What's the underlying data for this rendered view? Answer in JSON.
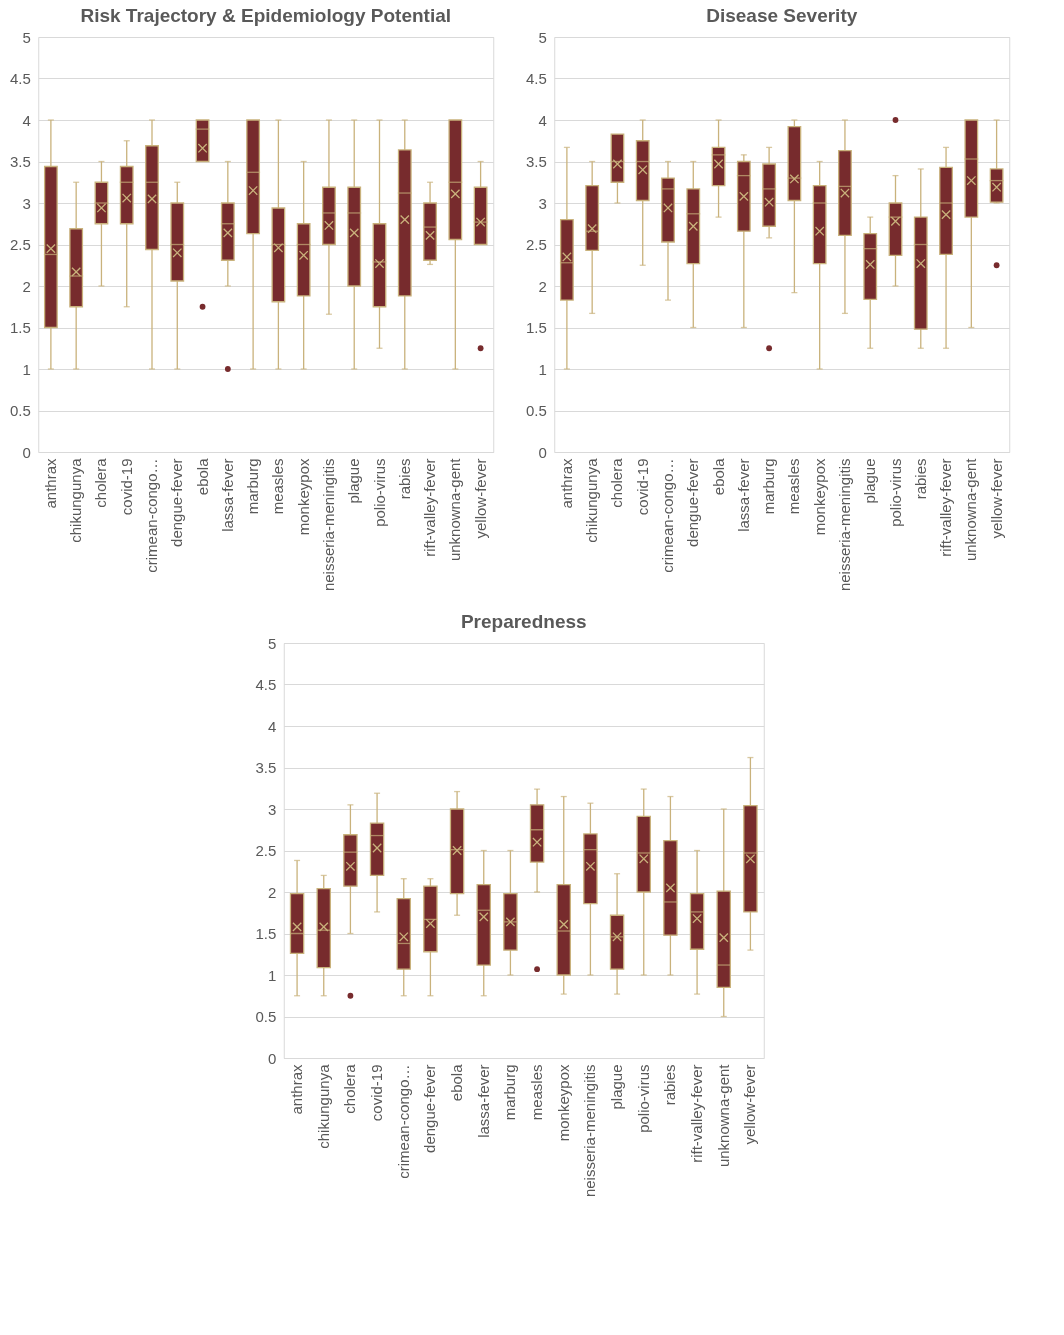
{
  "chart_data": [
    {
      "type": "box",
      "title": "Risk Trajectory & Epidemiology Potential",
      "categories": [
        "anthrax",
        "chikungunya",
        "cholera",
        "covid-19",
        "crimean-congo…",
        "dengue-fever",
        "ebola",
        "lassa-fever",
        "marburg",
        "measles",
        "monkeypox",
        "neisseria-meningitis",
        "plague",
        "polio-virus",
        "rabies",
        "rift-valley-fever",
        "unknowna-gent",
        "yellow-fever"
      ],
      "ylim": [
        0,
        5
      ],
      "yticks": [
        0,
        0.5,
        1,
        1.5,
        2,
        2.5,
        3,
        3.5,
        4,
        4.5,
        5
      ],
      "grid": "y",
      "series": [
        {
          "color": "#772b2d",
          "boxes": [
            {
              "low": 1,
              "q1": 1.5,
              "median": 2.38,
              "q3": 3.44,
              "high": 4,
              "mean": 2.45
            },
            {
              "low": 1,
              "q1": 1.75,
              "median": 2.12,
              "q3": 2.69,
              "high": 3.25,
              "mean": 2.17
            },
            {
              "low": 2,
              "q1": 2.75,
              "median": 3,
              "q3": 3.25,
              "high": 3.5,
              "mean": 2.94
            },
            {
              "low": 1.75,
              "q1": 2.75,
              "median": 3.25,
              "q3": 3.44,
              "high": 3.75,
              "mean": 3.06
            },
            {
              "low": 1,
              "q1": 2.44,
              "median": 3.25,
              "q3": 3.69,
              "high": 4,
              "mean": 3.05
            },
            {
              "low": 1,
              "q1": 2.06,
              "median": 2.5,
              "q3": 3,
              "high": 3.25,
              "mean": 2.4
            },
            {
              "low": 3.5,
              "q1": 3.5,
              "median": 3.89,
              "q3": 4,
              "high": 4,
              "mean": 3.66,
              "outliers": [
                1.75
              ]
            },
            {
              "low": 2,
              "q1": 2.31,
              "median": 2.75,
              "q3": 3,
              "high": 3.5,
              "mean": 2.64,
              "outliers": [
                1
              ]
            },
            {
              "low": 1,
              "q1": 2.63,
              "median": 3.37,
              "q3": 4,
              "high": 4,
              "mean": 3.15
            },
            {
              "low": 1,
              "q1": 1.81,
              "median": 2.5,
              "q3": 2.94,
              "high": 4,
              "mean": 2.46
            },
            {
              "low": 1,
              "q1": 1.88,
              "median": 2.5,
              "q3": 2.75,
              "high": 3.5,
              "mean": 2.37
            },
            {
              "low": 1.66,
              "q1": 2.5,
              "median": 2.88,
              "q3": 3.19,
              "high": 4,
              "mean": 2.73
            },
            {
              "low": 1,
              "q1": 2,
              "median": 2.88,
              "q3": 3.19,
              "high": 4,
              "mean": 2.64
            },
            {
              "low": 1.25,
              "q1": 1.75,
              "median": 2.29,
              "q3": 2.75,
              "high": 4,
              "mean": 2.27
            },
            {
              "low": 1,
              "q1": 1.88,
              "median": 3.12,
              "q3": 3.64,
              "high": 4,
              "mean": 2.8
            },
            {
              "low": 2.26,
              "q1": 2.31,
              "median": 2.71,
              "q3": 3,
              "high": 3.25,
              "mean": 2.61
            },
            {
              "low": 1,
              "q1": 2.56,
              "median": 3.25,
              "q3": 4,
              "high": 4,
              "mean": 3.11
            },
            {
              "low": 2.5,
              "q1": 2.5,
              "median": 2.77,
              "q3": 3.19,
              "high": 3.5,
              "mean": 2.77,
              "outliers": [
                1.25
              ]
            }
          ]
        }
      ]
    },
    {
      "type": "box",
      "title": "Disease Severity",
      "categories": [
        "anthrax",
        "chikungunya",
        "cholera",
        "covid-19",
        "crimean-congo…",
        "dengue-fever",
        "ebola",
        "lassa-fever",
        "marburg",
        "measles",
        "monkeypox",
        "neisseria-meningitis",
        "plague",
        "polio-virus",
        "rabies",
        "rift-valley-fever",
        "unknowna-gent",
        "yellow-fever"
      ],
      "ylim": [
        0,
        5
      ],
      "yticks": [
        0,
        0.5,
        1,
        1.5,
        2,
        2.5,
        3,
        3.5,
        4,
        4.5,
        5
      ],
      "grid": "y",
      "series": [
        {
          "color": "#772b2d",
          "boxes": [
            {
              "low": 1,
              "q1": 1.83,
              "median": 2.28,
              "q3": 2.8,
              "high": 3.67,
              "mean": 2.35
            },
            {
              "low": 1.67,
              "q1": 2.43,
              "median": 2.66,
              "q3": 3.21,
              "high": 3.5,
              "mean": 2.69
            },
            {
              "low": 3,
              "q1": 3.25,
              "median": 3.5,
              "q3": 3.83,
              "high": 3.83,
              "mean": 3.47
            },
            {
              "low": 2.25,
              "q1": 3.03,
              "median": 3.5,
              "q3": 3.75,
              "high": 4,
              "mean": 3.4
            },
            {
              "low": 1.83,
              "q1": 2.53,
              "median": 3.17,
              "q3": 3.3,
              "high": 3.5,
              "mean": 2.94
            },
            {
              "low": 1.5,
              "q1": 2.27,
              "median": 2.87,
              "q3": 3.17,
              "high": 3.5,
              "mean": 2.72
            },
            {
              "low": 2.83,
              "q1": 3.21,
              "median": 3.58,
              "q3": 3.67,
              "high": 4,
              "mean": 3.47
            },
            {
              "low": 1.5,
              "q1": 2.66,
              "median": 3.33,
              "q3": 3.5,
              "high": 3.58,
              "mean": 3.08
            },
            {
              "low": 2.58,
              "q1": 2.72,
              "median": 3.17,
              "q3": 3.47,
              "high": 3.67,
              "mean": 3.01,
              "outliers": [
                1.25
              ]
            },
            {
              "low": 1.92,
              "q1": 3.03,
              "median": 3.3,
              "q3": 3.92,
              "high": 4,
              "mean": 3.29
            },
            {
              "low": 1,
              "q1": 2.27,
              "median": 3,
              "q3": 3.21,
              "high": 3.5,
              "mean": 2.66
            },
            {
              "low": 1.67,
              "q1": 2.61,
              "median": 3.2,
              "q3": 3.63,
              "high": 4,
              "mean": 3.12
            },
            {
              "low": 1.25,
              "q1": 1.84,
              "median": 2.45,
              "q3": 2.63,
              "high": 2.83,
              "mean": 2.26
            },
            {
              "low": 2,
              "q1": 2.37,
              "median": 2.83,
              "q3": 3,
              "high": 3.33,
              "mean": 2.78,
              "outliers": [
                4
              ]
            },
            {
              "low": 1.25,
              "q1": 1.48,
              "median": 2.5,
              "q3": 2.83,
              "high": 3.41,
              "mean": 2.27
            },
            {
              "low": 1.25,
              "q1": 2.38,
              "median": 3,
              "q3": 3.43,
              "high": 3.67,
              "mean": 2.86
            },
            {
              "low": 1.5,
              "q1": 2.83,
              "median": 3.53,
              "q3": 4,
              "high": 4,
              "mean": 3.27
            },
            {
              "low": 3,
              "q1": 3.01,
              "median": 3.27,
              "q3": 3.41,
              "high": 4,
              "mean": 3.19,
              "outliers": [
                2.25
              ]
            }
          ]
        }
      ]
    },
    {
      "type": "box",
      "title": "Preparedness",
      "categories": [
        "anthrax",
        "chikungunya",
        "cholera",
        "covid-19",
        "crimean-congo…",
        "dengue-fever",
        "ebola",
        "lassa-fever",
        "marburg",
        "measles",
        "monkeypox",
        "neisseria-meningitis",
        "plague",
        "polio-virus",
        "rabies",
        "rift-valley-fever",
        "unknowna-gent",
        "yellow-fever"
      ],
      "ylim": [
        0,
        5
      ],
      "yticks": [
        0,
        0.5,
        1,
        1.5,
        2,
        2.5,
        3,
        3.5,
        4,
        4.5,
        5
      ],
      "grid": "y",
      "series": [
        {
          "color": "#772b2d",
          "boxes": [
            {
              "low": 0.75,
              "q1": 1.26,
              "median": 1.5,
              "q3": 1.98,
              "high": 2.38,
              "mean": 1.58
            },
            {
              "low": 0.75,
              "q1": 1.09,
              "median": 1.54,
              "q3": 2.04,
              "high": 2.2,
              "mean": 1.58
            },
            {
              "low": 1.5,
              "q1": 2.07,
              "median": 2.48,
              "q3": 2.69,
              "high": 3.05,
              "mean": 2.31,
              "outliers": [
                0.75
              ]
            },
            {
              "low": 1.76,
              "q1": 2.2,
              "median": 2.68,
              "q3": 2.83,
              "high": 3.19,
              "mean": 2.53
            },
            {
              "low": 0.75,
              "q1": 1.07,
              "median": 1.38,
              "q3": 1.92,
              "high": 2.16,
              "mean": 1.46
            },
            {
              "low": 0.75,
              "q1": 1.28,
              "median": 1.67,
              "q3": 2.07,
              "high": 2.16,
              "mean": 1.62
            },
            {
              "low": 1.72,
              "q1": 1.98,
              "median": 2.51,
              "q3": 3,
              "high": 3.21,
              "mean": 2.5
            },
            {
              "low": 0.75,
              "q1": 1.12,
              "median": 1.78,
              "q3": 2.09,
              "high": 2.5,
              "mean": 1.7
            },
            {
              "low": 1,
              "q1": 1.3,
              "median": 1.64,
              "q3": 1.98,
              "high": 2.5,
              "mean": 1.64
            },
            {
              "low": 2,
              "q1": 2.36,
              "median": 2.75,
              "q3": 3.05,
              "high": 3.24,
              "mean": 2.6,
              "outliers": [
                1.07
              ]
            },
            {
              "low": 0.77,
              "q1": 1,
              "median": 1.53,
              "q3": 2.09,
              "high": 3.15,
              "mean": 1.61
            },
            {
              "low": 1,
              "q1": 1.86,
              "median": 2.51,
              "q3": 2.7,
              "high": 3.07,
              "mean": 2.31
            },
            {
              "low": 0.77,
              "q1": 1.07,
              "median": 1.46,
              "q3": 1.72,
              "high": 2.22,
              "mean": 1.46
            },
            {
              "low": 1,
              "q1": 2,
              "median": 2.47,
              "q3": 2.91,
              "high": 3.24,
              "mean": 2.4
            },
            {
              "low": 1,
              "q1": 1.48,
              "median": 1.88,
              "q3": 2.62,
              "high": 3.15,
              "mean": 2.05
            },
            {
              "low": 0.77,
              "q1": 1.31,
              "median": 1.76,
              "q3": 1.98,
              "high": 2.5,
              "mean": 1.68
            },
            {
              "low": 0.5,
              "q1": 0.85,
              "median": 1.12,
              "q3": 2.01,
              "high": 3,
              "mean": 1.45
            },
            {
              "low": 1.3,
              "q1": 1.76,
              "median": 2.47,
              "q3": 3.04,
              "high": 3.62,
              "mean": 2.4
            }
          ]
        }
      ]
    }
  ]
}
